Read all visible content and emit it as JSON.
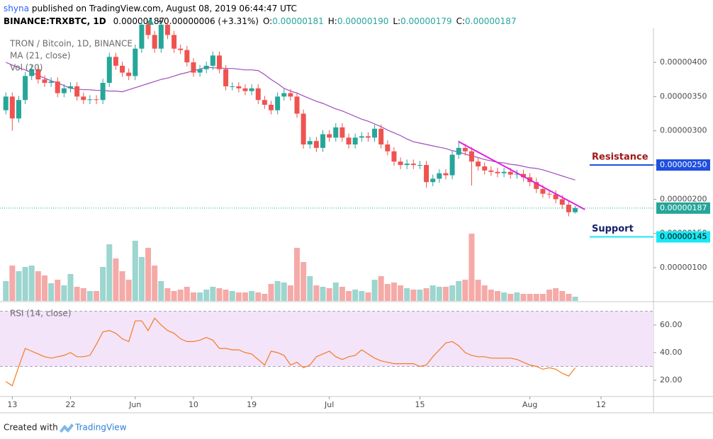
{
  "header": {
    "author": "shyna",
    "published": "published on TradingView.com, August 08, 2019 06:44:47 UTC",
    "symbol": "BINANCE:TRXBTC, 1D",
    "price": "0.00000187",
    "change": "+0.00000006 (+3.31%)",
    "ohlc": [
      {
        "key": "O:",
        "value": "0.00000181"
      },
      {
        "key": "H:",
        "value": "0.00000190"
      },
      {
        "key": "L:",
        "value": "0.00000179"
      },
      {
        "key": "C:",
        "value": "0.00000187"
      }
    ]
  },
  "chart_data": {
    "type": "candlestick",
    "title": "TRON / Bitcoin, 1D, BINANCE",
    "up_color": "#26a69a",
    "down_color": "#ef5350",
    "volume_up_color": "#9dd5cf",
    "volume_down_color": "#f5aaa8",
    "xlim": [
      -0.9,
      100.1
    ],
    "xticks": [
      {
        "value": 1,
        "label": "13"
      },
      {
        "value": 10,
        "label": "22"
      },
      {
        "value": 20,
        "label": "Jun"
      },
      {
        "value": 29,
        "label": "10"
      },
      {
        "value": 38,
        "label": "19"
      },
      {
        "value": 50,
        "label": "Jul"
      },
      {
        "value": 64,
        "label": "15"
      },
      {
        "value": 81,
        "label": "Aug"
      },
      {
        "value": 92,
        "label": "12"
      }
    ],
    "ylim": [
      5.14e-07,
      4.497e-06
    ],
    "yticks": [
      {
        "value": 1e-06,
        "label": "0.00000100"
      },
      {
        "value": 1.5e-06,
        "label": "0.00000150"
      },
      {
        "value": 2e-06,
        "label": "0.00000200"
      },
      {
        "value": 2.5e-06,
        "label": "0.00000250"
      },
      {
        "value": 3e-06,
        "label": "0.00000300"
      },
      {
        "value": 3.5e-06,
        "label": "0.00000350"
      },
      {
        "value": 4e-06,
        "label": "0.00000400"
      }
    ],
    "open": [
      3.3e-06,
      3.5e-06,
      3.18e-06,
      3.45e-06,
      3.8e-06,
      3.9e-06,
      3.75e-06,
      3.7e-06,
      3.72e-06,
      3.55e-06,
      3.62e-06,
      3.65e-06,
      3.5e-06,
      3.45e-06,
      3.46e-06,
      3.45e-06,
      3.7e-06,
      4.08e-06,
      3.95e-06,
      3.85e-06,
      3.8e-06,
      4.2e-06,
      4.55e-06,
      4.4e-06,
      4.2e-06,
      4.55e-06,
      4.4e-06,
      4.2e-06,
      4.18e-06,
      4e-06,
      3.85e-06,
      3.9e-06,
      3.95e-06,
      4.1e-06,
      3.9e-06,
      3.65e-06,
      3.65e-06,
      3.62e-06,
      3.58e-06,
      3.62e-06,
      3.45e-06,
      3.38e-06,
      3.3e-06,
      3.5e-06,
      3.55e-06,
      3.5e-06,
      3.25e-06,
      2.8e-06,
      2.85e-06,
      2.75e-06,
      2.95e-06,
      2.9e-06,
      3.05e-06,
      2.9e-06,
      2.8e-06,
      2.9e-06,
      2.92e-06,
      2.9e-06,
      3.03e-06,
      2.8e-06,
      2.7e-06,
      2.55e-06,
      2.5e-06,
      2.52e-06,
      2.5e-06,
      2.5e-06,
      2.25e-06,
      2.3e-06,
      2.38e-06,
      2.35e-06,
      2.65e-06,
      2.75e-06,
      2.7e-06,
      2.55e-06,
      2.48e-06,
      2.42e-06,
      2.4e-06,
      2.38e-06,
      2.4e-06,
      2.36e-06,
      2.37e-06,
      2.32e-06,
      2.25e-06,
      2.15e-06,
      2.08e-06,
      2.07e-06,
      2e-06,
      1.92e-06,
      1.81e-06
    ],
    "high": [
      3.56e-06,
      3.56e-06,
      3.51e-06,
      3.86e-06,
      3.96e-06,
      3.96e-06,
      3.81e-06,
      3.78e-06,
      3.78e-06,
      3.68e-06,
      3.71e-06,
      3.71e-06,
      3.56e-06,
      3.52e-06,
      3.52e-06,
      3.76e-06,
      4.14e-06,
      4.14e-06,
      4.01e-06,
      3.91e-06,
      4.26e-06,
      4.61e-06,
      4.61e-06,
      4.46e-06,
      4.61e-06,
      4.61e-06,
      4.46e-06,
      4.26e-06,
      4.24e-06,
      4.06e-06,
      3.96e-06,
      4.01e-06,
      4.16e-06,
      4.16e-06,
      3.96e-06,
      3.71e-06,
      3.71e-06,
      3.68e-06,
      3.68e-06,
      3.68e-06,
      3.51e-06,
      3.44e-06,
      3.56e-06,
      3.61e-06,
      3.61e-06,
      3.56e-06,
      3.31e-06,
      2.91e-06,
      2.91e-06,
      3.01e-06,
      3.01e-06,
      3.11e-06,
      3.11e-06,
      2.96e-06,
      2.96e-06,
      2.98e-06,
      2.98e-06,
      3.09e-06,
      3.09e-06,
      2.86e-06,
      2.76e-06,
      2.61e-06,
      2.58e-06,
      2.58e-06,
      2.56e-06,
      2.56e-06,
      2.36e-06,
      2.44e-06,
      2.44e-06,
      2.71e-06,
      2.86e-06,
      2.81e-06,
      2.76e-06,
      2.61e-06,
      2.54e-06,
      2.48e-06,
      2.46e-06,
      2.46e-06,
      2.46e-06,
      2.43e-06,
      2.43e-06,
      2.38e-06,
      2.31e-06,
      2.21e-06,
      2.14e-06,
      2.13e-06,
      2.06e-06,
      1.98e-06,
      1.9e-06
    ],
    "low": [
      3.24e-06,
      3e-06,
      3.12e-06,
      3.39e-06,
      3.74e-06,
      3.69e-06,
      3.64e-06,
      3.64e-06,
      3.49e-06,
      3.49e-06,
      3.56e-06,
      3.44e-06,
      3.39e-06,
      3.39e-06,
      3.39e-06,
      3.39e-06,
      3.64e-06,
      3.89e-06,
      3.79e-06,
      3.74e-06,
      3.74e-06,
      4.14e-06,
      4.34e-06,
      4.14e-06,
      4.14e-06,
      4.34e-06,
      4.14e-06,
      4.12e-06,
      3.94e-06,
      3.79e-06,
      3.79e-06,
      3.84e-06,
      3.89e-06,
      3.84e-06,
      3.59e-06,
      3.59e-06,
      3.56e-06,
      3.52e-06,
      3.52e-06,
      3.39e-06,
      3.32e-06,
      3.24e-06,
      3.24e-06,
      3.44e-06,
      3.44e-06,
      3.19e-06,
      2.74e-06,
      2.74e-06,
      2.69e-06,
      2.69e-06,
      2.84e-06,
      2.84e-06,
      2.84e-06,
      2.74e-06,
      2.74e-06,
      2.84e-06,
      2.84e-06,
      2.84e-06,
      2.74e-06,
      2.64e-06,
      2.49e-06,
      2.44e-06,
      2.44e-06,
      2.44e-06,
      2.44e-06,
      2.17e-06,
      2.19e-06,
      2.24e-06,
      2.29e-06,
      2.29e-06,
      2.59e-06,
      2.64e-06,
      2.2e-06,
      2.42e-06,
      2.36e-06,
      2.34e-06,
      2.32e-06,
      2.32e-06,
      2.3e-06,
      2.3e-06,
      2.26e-06,
      2.19e-06,
      2.09e-06,
      2.02e-06,
      2.01e-06,
      1.94e-06,
      1.86e-06,
      1.75e-06,
      1.79e-06
    ],
    "close": [
      3.5e-06,
      3.18e-06,
      3.45e-06,
      3.8e-06,
      3.9e-06,
      3.75e-06,
      3.7e-06,
      3.72e-06,
      3.55e-06,
      3.62e-06,
      3.65e-06,
      3.5e-06,
      3.45e-06,
      3.46e-06,
      3.45e-06,
      3.7e-06,
      4.08e-06,
      3.95e-06,
      3.85e-06,
      3.8e-06,
      4.2e-06,
      4.55e-06,
      4.4e-06,
      4.2e-06,
      4.55e-06,
      4.4e-06,
      4.2e-06,
      4.18e-06,
      4e-06,
      3.85e-06,
      3.9e-06,
      3.95e-06,
      4.1e-06,
      3.9e-06,
      3.65e-06,
      3.65e-06,
      3.62e-06,
      3.58e-06,
      3.62e-06,
      3.45e-06,
      3.38e-06,
      3.3e-06,
      3.5e-06,
      3.55e-06,
      3.5e-06,
      3.25e-06,
      2.8e-06,
      2.85e-06,
      2.75e-06,
      2.95e-06,
      2.9e-06,
      3.05e-06,
      2.9e-06,
      2.8e-06,
      2.9e-06,
      2.92e-06,
      2.9e-06,
      3.03e-06,
      2.8e-06,
      2.7e-06,
      2.55e-06,
      2.5e-06,
      2.52e-06,
      2.5e-06,
      2.5e-06,
      2.25e-06,
      2.3e-06,
      2.38e-06,
      2.35e-06,
      2.65e-06,
      2.75e-06,
      2.7e-06,
      2.55e-06,
      2.48e-06,
      2.42e-06,
      2.4e-06,
      2.38e-06,
      2.4e-06,
      2.36e-06,
      2.37e-06,
      2.32e-06,
      2.25e-06,
      2.15e-06,
      2.08e-06,
      2.07e-06,
      2e-06,
      1.92e-06,
      1.81e-06,
      1.87e-06
    ],
    "volume_name": "Vol (20)",
    "volume": [
      28,
      50,
      42,
      48,
      50,
      42,
      36,
      25,
      30,
      22,
      38,
      20,
      18,
      14,
      14,
      48,
      80,
      60,
      42,
      30,
      85,
      62,
      75,
      50,
      28,
      18,
      14,
      16,
      20,
      12,
      12,
      16,
      20,
      18,
      16,
      14,
      12,
      12,
      14,
      12,
      10,
      24,
      28,
      26,
      22,
      75,
      55,
      35,
      22,
      20,
      18,
      26,
      20,
      14,
      16,
      14,
      12,
      30,
      35,
      24,
      26,
      22,
      18,
      16,
      16,
      18,
      22,
      20,
      20,
      22,
      28,
      30,
      95,
      30,
      22,
      16,
      14,
      12,
      10,
      12,
      10,
      10,
      10,
      10,
      16,
      18,
      14,
      10,
      6
    ],
    "ma": {
      "name": "MA (21, close)",
      "color": "#a24cbe",
      "values": [
        4e-06,
        3.96e-06,
        3.92e-06,
        3.89e-06,
        3.85e-06,
        3.81e-06,
        3.77e-06,
        3.73e-06,
        3.7e-06,
        3.66e-06,
        3.62e-06,
        3.61e-06,
        3.6e-06,
        3.6e-06,
        3.59e-06,
        3.59e-06,
        3.58e-06,
        3.58e-06,
        3.57e-06,
        3.6e-06,
        3.63e-06,
        3.66e-06,
        3.69e-06,
        3.72e-06,
        3.75e-06,
        3.77e-06,
        3.8e-06,
        3.83e-06,
        3.85e-06,
        3.88e-06,
        3.9e-06,
        3.93e-06,
        3.92e-06,
        3.92e-06,
        3.91e-06,
        3.91e-06,
        3.9e-06,
        3.89e-06,
        3.89e-06,
        3.88e-06,
        3.82e-06,
        3.75e-06,
        3.69e-06,
        3.62e-06,
        3.58e-06,
        3.55e-06,
        3.51e-06,
        3.47e-06,
        3.43e-06,
        3.4e-06,
        3.36e-06,
        3.32e-06,
        3.29e-06,
        3.25e-06,
        3.21e-06,
        3.17e-06,
        3.14e-06,
        3.1e-06,
        3.06e-06,
        3.01e-06,
        2.97e-06,
        2.93e-06,
        2.88e-06,
        2.84e-06,
        2.82e-06,
        2.8e-06,
        2.78e-06,
        2.76e-06,
        2.74e-06,
        2.71e-06,
        2.69e-06,
        2.66e-06,
        2.63e-06,
        2.61e-06,
        2.58e-06,
        2.56e-06,
        2.54e-06,
        2.53e-06,
        2.51e-06,
        2.5e-06,
        2.48e-06,
        2.46e-06,
        2.45e-06,
        2.43e-06,
        2.4e-06,
        2.37e-06,
        2.34e-06,
        2.31e-06,
        2.28e-06
      ]
    },
    "last_price": {
      "value": 1.87e-06,
      "label": "0.00000187",
      "color": "#26a69a"
    },
    "trendline": {
      "x": [
        70,
        89.5
      ],
      "y": [
        2.84e-06,
        1.85e-06
      ],
      "color": "#e01fe0"
    },
    "levels": [
      {
        "name": "Resistance",
        "value": 2.5e-06,
        "label": "0.00000250",
        "color": "#1f4fdf",
        "text_color": "#a01818",
        "label_text_color": "#ffffff"
      },
      {
        "name": "Support",
        "value": 1.45e-06,
        "label": "0.00000145",
        "color": "#18e8f5",
        "text_color": "#16216b",
        "label_text_color": "#000000"
      }
    ],
    "rsi": {
      "name": "RSI (14, close)",
      "color": "#f57c1f",
      "band": [
        30,
        70
      ],
      "band_color": "#f3e4fa",
      "ylim": [
        8.2,
        75.9
      ],
      "yticks": [
        {
          "value": 20,
          "label": "20.00"
        },
        {
          "value": 40,
          "label": "40.00"
        },
        {
          "value": 60,
          "label": "60.00"
        }
      ],
      "values": [
        19,
        16,
        30,
        43,
        41,
        39,
        37,
        36,
        37,
        38,
        40,
        37,
        37,
        38,
        46,
        55,
        56,
        54,
        50,
        48,
        63,
        63,
        56,
        65,
        60,
        56,
        54,
        50,
        48,
        48,
        49,
        51,
        49,
        43,
        43,
        42,
        42,
        40,
        39,
        35,
        31,
        41,
        40,
        38,
        31,
        33,
        29,
        31,
        37,
        39,
        41,
        37,
        35,
        37,
        38,
        42,
        39,
        36,
        34,
        33,
        32,
        32,
        32,
        32,
        30,
        31,
        37,
        42,
        47,
        48,
        45,
        40,
        38,
        37,
        37,
        36,
        36,
        36,
        36,
        35,
        33,
        31,
        30,
        28,
        29,
        28,
        25,
        23,
        29
      ]
    }
  },
  "footer": {
    "created": "Created with",
    "brand": "TradingView"
  }
}
